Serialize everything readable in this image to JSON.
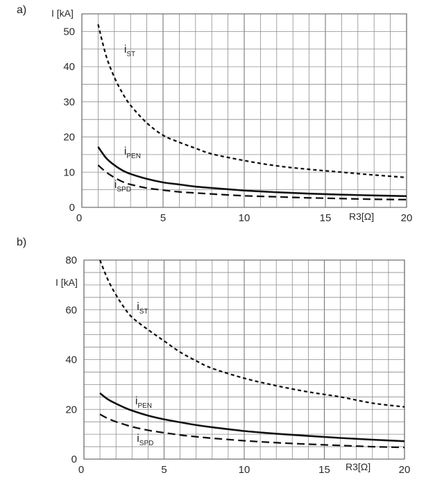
{
  "panels": [
    {
      "id": "a",
      "label": "a)"
    },
    {
      "id": "b",
      "label": "b)"
    }
  ],
  "chart_data": [
    {
      "type": "line",
      "panel_label": "a)",
      "title": "",
      "xlabel": "R3[Ω]",
      "ylabel": "I [kA]",
      "xlim": [
        0,
        20
      ],
      "ylim": [
        0,
        55
      ],
      "x_ticks": [
        0,
        5,
        10,
        15,
        20
      ],
      "y_ticks": [
        0,
        10,
        20,
        30,
        40,
        50
      ],
      "grid": true,
      "x": [
        1,
        1.5,
        2,
        2.5,
        3,
        4,
        5,
        6,
        7,
        8,
        10,
        12,
        14,
        16,
        18,
        20
      ],
      "series": [
        {
          "name": "i",
          "subscript": "ST",
          "style": "dotted",
          "values": [
            52,
            43,
            37,
            32.5,
            29,
            24,
            20.5,
            18.5,
            16.8,
            15.2,
            13.3,
            11.8,
            10.8,
            10,
            9.2,
            8.5
          ]
        },
        {
          "name": "i",
          "subscript": "PEN",
          "style": "solid",
          "values": [
            17.2,
            14,
            12,
            10.5,
            9.5,
            8.1,
            7.1,
            6.5,
            5.9,
            5.5,
            4.8,
            4.3,
            3.9,
            3.6,
            3.4,
            3.2
          ]
        },
        {
          "name": "i",
          "subscript": "SPD",
          "style": "dashed",
          "values": [
            12,
            10,
            8.5,
            7.3,
            6.5,
            5.5,
            4.9,
            4.4,
            4.1,
            3.8,
            3.3,
            3,
            2.7,
            2.5,
            2.3,
            2.2
          ]
        }
      ],
      "label_anchors": [
        {
          "series": 0,
          "x": 2.6,
          "y": 44
        },
        {
          "series": 1,
          "x": 2.6,
          "y": 15
        },
        {
          "series": 2,
          "x": 2,
          "y": 5.5
        }
      ]
    },
    {
      "type": "line",
      "panel_label": "b)",
      "title": "",
      "xlabel": "R3[Ω]",
      "ylabel": "I [kA]",
      "xlim": [
        0,
        20
      ],
      "ylim": [
        0,
        80
      ],
      "x_ticks": [
        0,
        5,
        10,
        15,
        20
      ],
      "y_ticks": [
        0,
        20,
        40,
        60,
        80
      ],
      "grid": true,
      "x": [
        1,
        1.5,
        2,
        2.5,
        3,
        4,
        5,
        6,
        7,
        8,
        10,
        12,
        14,
        16,
        18,
        20
      ],
      "series": [
        {
          "name": "i",
          "subscript": "ST",
          "style": "dotted",
          "values": [
            80,
            72,
            66,
            61,
            57,
            52,
            47.5,
            43,
            39.5,
            36.5,
            32.5,
            29.5,
            27,
            25,
            22.5,
            21
          ]
        },
        {
          "name": "i",
          "subscript": "PEN",
          "style": "solid",
          "values": [
            26.5,
            24,
            22.3,
            20.8,
            19.5,
            17.5,
            16,
            14.8,
            13.7,
            12.8,
            11.3,
            10.2,
            9.3,
            8.5,
            7.8,
            7.2
          ]
        },
        {
          "name": "i",
          "subscript": "SPD",
          "style": "dashed",
          "values": [
            18,
            16.3,
            15,
            14,
            13,
            11.6,
            10.6,
            9.7,
            9,
            8.4,
            7.4,
            6.6,
            6,
            5.5,
            5,
            4.7
          ]
        }
      ],
      "label_anchors": [
        {
          "series": 0,
          "x": 3.3,
          "y": 60
        },
        {
          "series": 1,
          "x": 3.2,
          "y": 22
        },
        {
          "series": 2,
          "x": 3.3,
          "y": 7
        }
      ]
    }
  ]
}
